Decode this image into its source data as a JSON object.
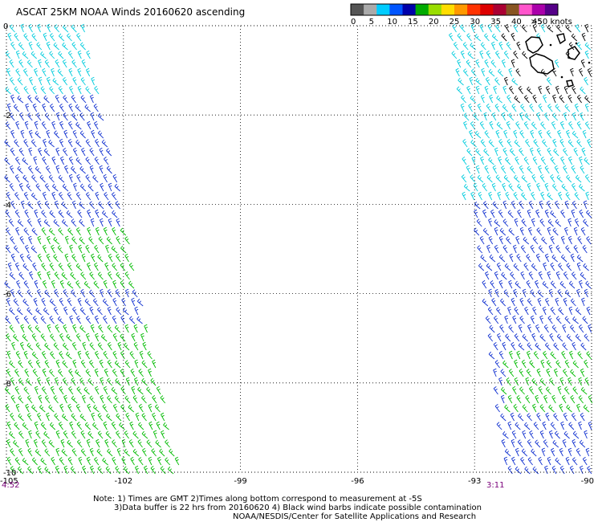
{
  "title": "ASCAT 25KM NOAA Winds 20160620 ascending",
  "colorbar": {
    "labels": [
      "0",
      "5",
      "10",
      "15",
      "20",
      "25",
      "30",
      "35",
      "40",
      "45",
      ">50 knots"
    ],
    "colors": [
      "#555555",
      "#aaaaaa",
      "#00ccff",
      "#0055ff",
      "#0000aa",
      "#00aa00",
      "#99dd00",
      "#ffdd00",
      "#ff9900",
      "#ff3300",
      "#dd0000",
      "#aa0033",
      "#885522",
      "#ff55cc",
      "#aa00aa",
      "#550088"
    ]
  },
  "map": {
    "lat_labels": [
      "0",
      "-2",
      "-4",
      "-6",
      "-8",
      "-10"
    ],
    "lon_labels": [
      "-105",
      "-102",
      "-99",
      "-96",
      "-93",
      "-90"
    ],
    "lon_range": [
      -105,
      -90
    ],
    "lat_range": [
      0,
      -10
    ]
  },
  "swaths": [
    {
      "time": "4:52",
      "side": "left"
    },
    {
      "time": "3:11",
      "side": "right"
    }
  ],
  "notes": {
    "line1": "Note: 1) Times are GMT 2)Times along bottom correspond to measurement at -5S",
    "line2": "3)Data buffer is 22 hrs from 20160620 4) Black wind barbs indicate possible contamination",
    "credit": "NOAA/NESDIS/Center for Satellite Applications and Research"
  },
  "colors": {
    "light_wind": "#00ccdd",
    "moderate_wind": "#1030d0",
    "strong_wind": "#00bb00",
    "contaminated": "#000000",
    "time_label": "#7a007a"
  }
}
